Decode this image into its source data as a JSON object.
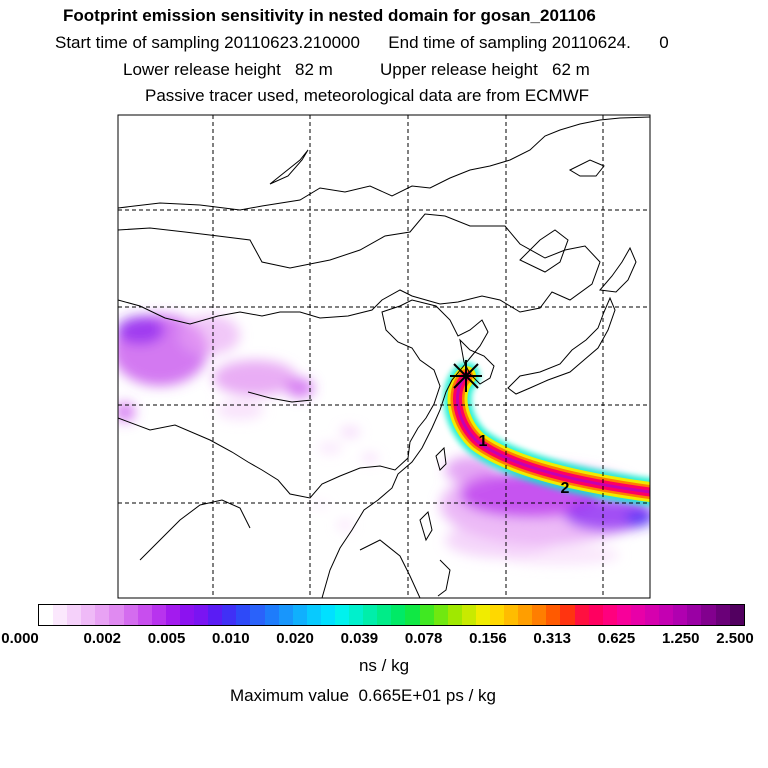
{
  "header": {
    "title": "Footprint emission sensitivity in nested domain for gosan_201106",
    "sampling": "Start time of sampling 20110623.210000      End time of sampling 20110624.      0",
    "release": "Lower release height   82 m          Upper release height   62 m",
    "tracer": "Passive tracer used, meteorological data are from ECMWF"
  },
  "map": {
    "time_markers": [
      "1",
      "2"
    ],
    "receptor_marker": "star-icon"
  },
  "legend": {
    "ticks": [
      "0.000",
      "0.002",
      "0.005",
      "0.010",
      "0.020",
      "0.039",
      "0.078",
      "0.156",
      "0.313",
      "0.625",
      "1.250",
      "2.500"
    ],
    "colors": [
      "#ffffff",
      "#fbe8fd",
      "#f5d1fa",
      "#efbaf7",
      "#e8a2f4",
      "#e08af1",
      "#d46cef",
      "#c84eee",
      "#b833ee",
      "#a31bee",
      "#8c12f0",
      "#7a14f2",
      "#5a1cf4",
      "#4030f6",
      "#2e4af8",
      "#2a62fa",
      "#1e7cfb",
      "#1896fc",
      "#10b0fd",
      "#08cafe",
      "#00e0ff",
      "#00f2ee",
      "#00f0cc",
      "#00eeaa",
      "#00ec88",
      "#00ea66",
      "#10e844",
      "#40e822",
      "#70e810",
      "#a0e800",
      "#c8ea00",
      "#f0ec00",
      "#ffd800",
      "#ffbc00",
      "#ff9e00",
      "#ff7e00",
      "#ff5a00",
      "#ff3410",
      "#ff1040",
      "#ff0060",
      "#ff007e",
      "#f8009a",
      "#e800a8",
      "#d600ae",
      "#c400b2",
      "#b000b0",
      "#9a00a4",
      "#82008e",
      "#6a0078",
      "#520060"
    ],
    "unit": "ns / kg",
    "maximum": "Maximum value  0.665E+01 ps / kg"
  }
}
